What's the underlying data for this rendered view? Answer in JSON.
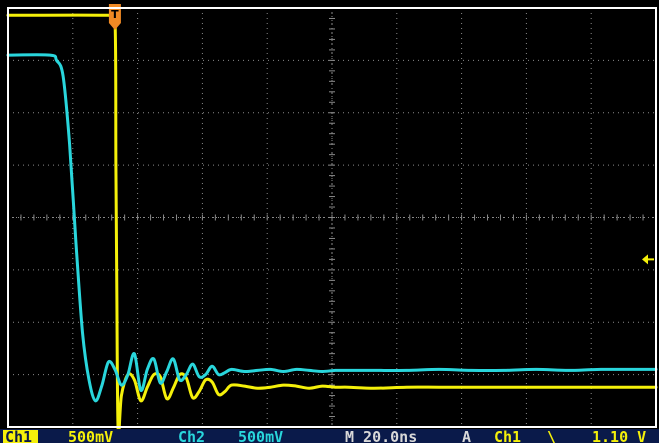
{
  "colors": {
    "background": "#000000",
    "border": "#ffffff",
    "graticule": "#8a8a8a",
    "ch1": "#f5f00a",
    "ch2": "#29d6dc",
    "trigger_marker": "#f08a24",
    "statusbar_bg": "#0a1a4a"
  },
  "chart_data": {
    "type": "line",
    "title": "",
    "xlabel": "",
    "ylabel": "",
    "grid": true,
    "divisions": {
      "x": 10,
      "y": 8
    },
    "x_unit": "ns",
    "y_unit": "V",
    "xlim": [
      -33,
      167
    ],
    "ylim": [
      -2.0,
      2.0
    ],
    "series": [
      {
        "name": "Ch1",
        "color_key": "ch1",
        "x": [
          -33,
          -2,
          0,
          0.3,
          0.6,
          1,
          2,
          4,
          6,
          8,
          10,
          12,
          14,
          16,
          18,
          20,
          22,
          24,
          26,
          28,
          30,
          32,
          34,
          36,
          40,
          44,
          48,
          52,
          56,
          60,
          64,
          68,
          72,
          80,
          90,
          100,
          110,
          120,
          130,
          140,
          150,
          167
        ],
        "y": [
          1.93,
          1.93,
          1.9,
          0.5,
          -0.8,
          -2.05,
          -1.7,
          -1.5,
          -1.55,
          -1.75,
          -1.62,
          -1.5,
          -1.52,
          -1.73,
          -1.63,
          -1.5,
          -1.53,
          -1.72,
          -1.66,
          -1.55,
          -1.57,
          -1.69,
          -1.66,
          -1.6,
          -1.61,
          -1.63,
          -1.62,
          -1.6,
          -1.61,
          -1.63,
          -1.61,
          -1.62,
          -1.62,
          -1.63,
          -1.62,
          -1.62,
          -1.62,
          -1.62,
          -1.62,
          -1.62,
          -1.62,
          -1.62
        ]
      },
      {
        "name": "Ch2",
        "color_key": "ch2",
        "x": [
          -33,
          -20,
          -18,
          -16,
          -14,
          -12,
          -10,
          -8,
          -6,
          -4,
          -2,
          0,
          2,
          4,
          6,
          8,
          10,
          12,
          14,
          16,
          18,
          20,
          22,
          24,
          26,
          28,
          30,
          32,
          34,
          36,
          40,
          44,
          48,
          52,
          56,
          60,
          64,
          68,
          72,
          80,
          90,
          100,
          110,
          120,
          130,
          140,
          150,
          167
        ],
        "y": [
          1.55,
          1.55,
          1.5,
          1.35,
          0.7,
          -0.25,
          -1.1,
          -1.55,
          -1.75,
          -1.6,
          -1.38,
          -1.45,
          -1.6,
          -1.5,
          -1.3,
          -1.65,
          -1.45,
          -1.35,
          -1.58,
          -1.47,
          -1.35,
          -1.55,
          -1.5,
          -1.4,
          -1.52,
          -1.5,
          -1.42,
          -1.5,
          -1.48,
          -1.45,
          -1.47,
          -1.46,
          -1.45,
          -1.47,
          -1.45,
          -1.46,
          -1.47,
          -1.46,
          -1.46,
          -1.46,
          -1.46,
          -1.45,
          -1.46,
          -1.46,
          -1.45,
          -1.46,
          -1.45,
          -1.45
        ]
      }
    ],
    "trigger": {
      "x": 0
    },
    "ground_marker_level": -0.4
  },
  "statusbar": {
    "ch1_label": "Ch1",
    "ch1_scale": "500mV",
    "ch2_label": "Ch2",
    "ch2_scale": "500mV",
    "timebase": "M 20.0ns",
    "trigger_mode": "A",
    "trigger_source": "Ch1",
    "trigger_slope": "\\",
    "trigger_level": "1.10 V"
  },
  "markers": {
    "trigger_letter": "T"
  }
}
